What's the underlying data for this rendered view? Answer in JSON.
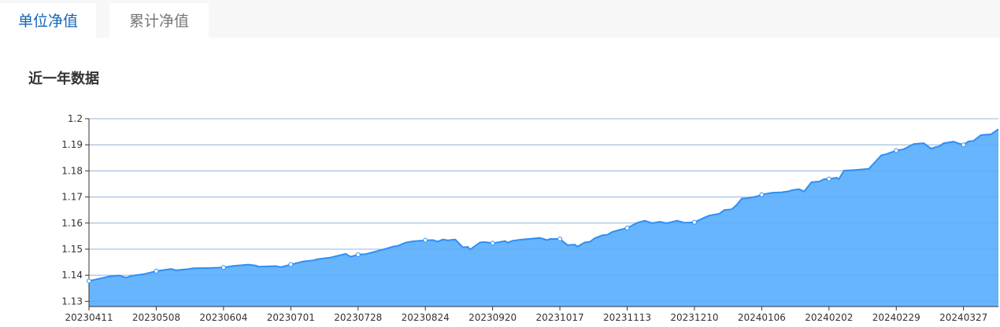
{
  "tabs": [
    {
      "label": "单位净值",
      "active": true
    },
    {
      "label": "累计净值",
      "active": false
    }
  ],
  "section_title": "近一年数据",
  "colors": {
    "active_tab": "#1565b5",
    "line": "#2e8ff5",
    "area": "#64b4fd"
  },
  "chart_data": {
    "type": "area",
    "title": "",
    "xlabel": "",
    "ylabel": "",
    "ylim": [
      1.128,
      1.2
    ],
    "y_ticks": [
      "1.13",
      "1.14",
      "1.15",
      "1.16",
      "1.17",
      "1.18",
      "1.19",
      "1.2"
    ],
    "x_ticks": [
      "20230411",
      "20230508",
      "20230604",
      "20230701",
      "20230728",
      "20230824",
      "20230920",
      "20231017",
      "20231113",
      "20231210",
      "20240106",
      "20240202",
      "20240229",
      "20240327"
    ],
    "grid": true,
    "x": [
      "20230411",
      "20230419",
      "20230423",
      "20230426",
      "20230428",
      "20230503",
      "20230508",
      "20230514",
      "20230516",
      "20230521",
      "20230523",
      "20230530",
      "20230604",
      "20230608",
      "20230614",
      "20230617",
      "20230618",
      "20230625",
      "20230627",
      "20230701",
      "20230706",
      "20230710",
      "20230712",
      "20230717",
      "20230723",
      "20230725",
      "20230728",
      "20230731",
      "20230804",
      "20230808",
      "20230811",
      "20230813",
      "20230816",
      "20230819",
      "20230824",
      "20230827",
      "20230829",
      "20230831",
      "20230902",
      "20230905",
      "20230908",
      "20230910",
      "20230911",
      "20230915",
      "20230917",
      "20230920",
      "20230925",
      "20230926",
      "20230928",
      "20231001",
      "20231009",
      "20231012",
      "20231013",
      "20231017",
      "20231020",
      "20231023",
      "20231024",
      "20231027",
      "20231029",
      "20231031",
      "20231103",
      "20231105",
      "20231107",
      "20231110",
      "20231113",
      "20231117",
      "20231120",
      "20231123",
      "20231126",
      "20231129",
      "20231203",
      "20231206",
      "20231210",
      "20231214",
      "20231216",
      "20231220",
      "20231222",
      "20231225",
      "20231227",
      "20231229",
      "20231231",
      "20240104",
      "20240106",
      "20240110",
      "20240114",
      "20240117",
      "20240118",
      "20240121",
      "20240123",
      "20240126",
      "20240129",
      "20240131",
      "20240202",
      "20240205",
      "20240206",
      "20240208",
      "20240213",
      "20240218",
      "20240223",
      "20240225",
      "20240229",
      "20240303",
      "20240307",
      "20240311",
      "20240314",
      "20240316",
      "20240317",
      "20240319",
      "20240323",
      "20240325",
      "20240327",
      "20240329",
      "20240331",
      "20240403",
      "20240407",
      "20240410"
    ],
    "values": [
      1.1378,
      1.1395,
      1.1399,
      1.1391,
      1.1398,
      1.1404,
      1.1416,
      1.1424,
      1.1419,
      1.1424,
      1.1427,
      1.1428,
      1.143,
      1.1436,
      1.1441,
      1.1437,
      1.1433,
      1.1435,
      1.1431,
      1.1441,
      1.1453,
      1.1457,
      1.1462,
      1.1468,
      1.1482,
      1.1471,
      1.1479,
      1.1481,
      1.1491,
      1.1501,
      1.151,
      1.1513,
      1.1525,
      1.153,
      1.1534,
      1.1535,
      1.1529,
      1.1537,
      1.1534,
      1.1537,
      1.1507,
      1.1509,
      1.1499,
      1.1526,
      1.1527,
      1.1523,
      1.1531,
      1.1525,
      1.1532,
      1.1536,
      1.1543,
      1.1535,
      1.1539,
      1.1539,
      1.1516,
      1.1517,
      1.151,
      1.1526,
      1.1528,
      1.1542,
      1.1553,
      1.1555,
      1.1566,
      1.1574,
      1.1581,
      1.1601,
      1.1609,
      1.16,
      1.1605,
      1.16,
      1.1609,
      1.1601,
      1.1603,
      1.1621,
      1.1629,
      1.1636,
      1.165,
      1.1653,
      1.167,
      1.1694,
      1.1695,
      1.1702,
      1.1709,
      1.1716,
      1.1718,
      1.1722,
      1.1726,
      1.173,
      1.1721,
      1.1757,
      1.1759,
      1.1768,
      1.1769,
      1.1774,
      1.1769,
      1.1801,
      1.1804,
      1.1808,
      1.186,
      1.1864,
      1.1878,
      1.1883,
      1.1903,
      1.1906,
      1.1885,
      1.1892,
      1.1893,
      1.1906,
      1.1912,
      1.1905,
      1.19,
      1.1913,
      1.1915,
      1.1937,
      1.194,
      1.196
    ]
  }
}
